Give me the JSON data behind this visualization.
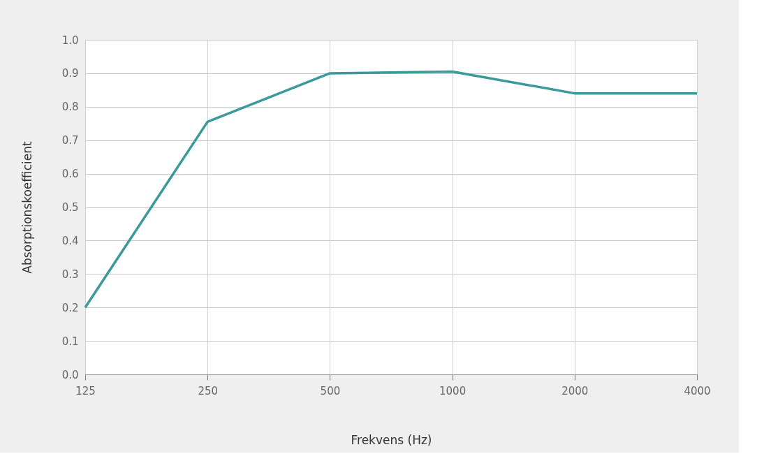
{
  "chart_data": {
    "type": "line",
    "xlabel": "Frekvens (Hz)",
    "ylabel": "Absorptionskoefficient",
    "categories": [
      "125",
      "250",
      "500",
      "1000",
      "2000",
      "4000"
    ],
    "series": [
      {
        "color": "#3a9a9a",
        "values": [
          0.2,
          0.755,
          0.9,
          0.905,
          0.84,
          0.84
        ]
      }
    ],
    "ylim": [
      0,
      1
    ],
    "yticks": [
      {
        "value": 0,
        "label": "0.0"
      },
      0.1,
      0.2,
      0.3,
      0.4,
      0.5,
      0.6,
      0.7,
      0.8,
      0.9,
      {
        "value": 1,
        "label": "1.0"
      }
    ],
    "grid": true,
    "marker": "none",
    "line_style": "solid",
    "legend": false
  }
}
